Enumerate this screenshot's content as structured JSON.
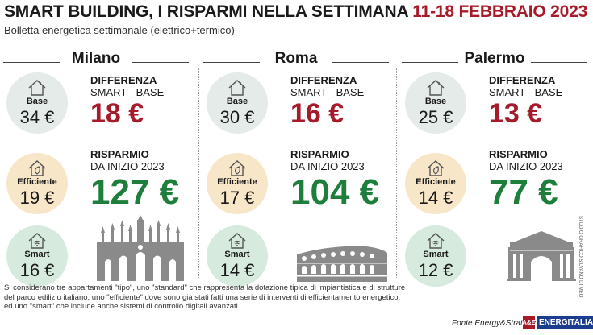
{
  "header": {
    "title_main": "SMART BUILDING, I RISPARMI NELLA SETTIMANA",
    "title_date": "11-18 FEBBRAIO 2023",
    "subtitle": "Bolletta energetica settimanale (elettrico+termico)"
  },
  "labels": {
    "base": "Base",
    "efficiente": "Efficiente",
    "smart": "Smart",
    "diff_title": "DIFFERENZA",
    "diff_sub": "SMART - BASE",
    "risp_title": "RISPARMIO",
    "risp_sub": "DA INIZIO 2023"
  },
  "cities": [
    {
      "name": "Milano",
      "base": "34 €",
      "efficiente": "19 €",
      "smart": "16 €",
      "differenza": "18 €",
      "risparmio": "127 €"
    },
    {
      "name": "Roma",
      "base": "30 €",
      "efficiente": "17 €",
      "smart": "14 €",
      "differenza": "16 €",
      "risparmio": "104 €"
    },
    {
      "name": "Palermo",
      "base": "25 €",
      "efficiente": "14 €",
      "smart": "12 €",
      "differenza": "13 €",
      "risparmio": "77 €"
    }
  ],
  "footer": {
    "note": "Si considerano tre appartamenti \"tipo\", uno \"standard\" che rappresenta la dotazione tipica di impiantistica e di strutture del parco edilizio italiano, uno \"efficiente\" dove sono già stati fatti una serie di interventi di efficientamento energetico, ed uno \"smart\" che include anche sistemi di controllo digitali avanzati.",
    "source": "Fonte Energy&Strategy",
    "brand": "ENERGITALIA",
    "brand_mark": "A&E",
    "credit": "STUDIO GRAFICO SILVANO DI MEO"
  },
  "colors": {
    "accent_red": "#a61b29",
    "accent_green": "#1e7f3c",
    "base_circle": "#e4ebe9",
    "efficiente_circle": "#f8e6c8",
    "smart_circle": "#d6ebde",
    "monument": "#8a8a8a"
  },
  "icons": {
    "base": "house-icon",
    "efficiente": "house-leaf-icon",
    "smart": "house-wifi-icon",
    "monuments": [
      "milan-cathedral-icon",
      "colosseum-icon",
      "palermo-gate-icon"
    ]
  }
}
